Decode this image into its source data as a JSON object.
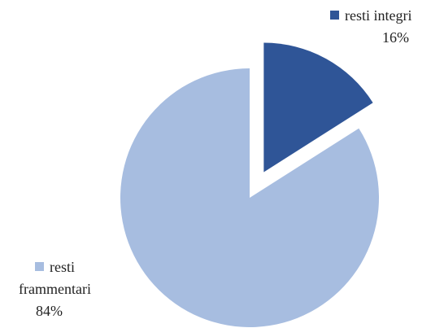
{
  "chart_data": {
    "type": "pie",
    "categories": [
      "resti integri",
      "resti frammentari"
    ],
    "values": [
      16,
      84
    ],
    "value_labels": [
      "16%",
      "84%"
    ],
    "colors": [
      "#2f5597",
      "#a7bde0"
    ],
    "explode": [
      true,
      false
    ]
  }
}
